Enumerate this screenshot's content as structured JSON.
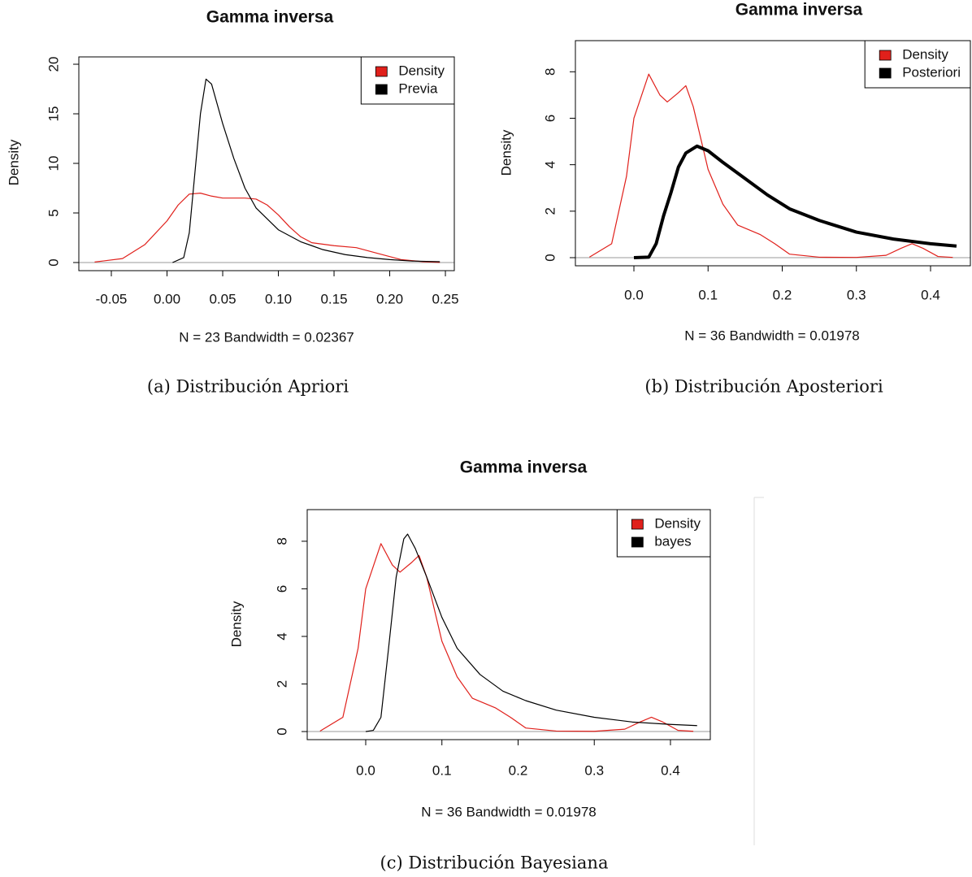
{
  "chart_data": [
    {
      "type": "line",
      "title": "Gamma inversa",
      "xlabel": "N = 23   Bandwidth = 0.02367",
      "ylabel": "Density",
      "caption": "(a) Distribución Apriori",
      "xlim": [
        -0.0792,
        0.258
      ],
      "ylim": [
        -0.82,
        20.74
      ],
      "xticks": [
        -0.05,
        {
          "value": 0,
          "label": "0.00"
        },
        0.05,
        {
          "value": 0.1,
          "label": "0.10"
        },
        0.15,
        {
          "value": 0.2,
          "label": "0.20"
        },
        0.25
      ],
      "yticks": [
        0,
        5,
        10,
        15,
        20
      ],
      "legend": "top-right",
      "series": [
        {
          "name": "Density",
          "color": "#e0201b",
          "linewidth": 1.2,
          "x": [
            -0.065,
            -0.04,
            -0.02,
            0.0,
            0.01,
            0.02,
            0.03,
            0.04,
            0.05,
            0.06,
            0.07,
            0.08,
            0.09,
            0.1,
            0.11,
            0.12,
            0.13,
            0.15,
            0.17,
            0.19,
            0.21,
            0.23,
            0.245
          ],
          "values": [
            0.05,
            0.4,
            1.8,
            4.2,
            5.8,
            6.9,
            7.0,
            6.7,
            6.5,
            6.5,
            6.5,
            6.4,
            5.8,
            4.8,
            3.6,
            2.6,
            2.0,
            1.7,
            1.5,
            0.9,
            0.3,
            0.08,
            0.02
          ]
        },
        {
          "name": "Previa",
          "color": "#000000",
          "linewidth": 1.2,
          "x": [
            0.005,
            0.015,
            0.02,
            0.025,
            0.03,
            0.035,
            0.04,
            0.05,
            0.06,
            0.07,
            0.08,
            0.1,
            0.12,
            0.14,
            0.16,
            0.18,
            0.2,
            0.22,
            0.245
          ],
          "values": [
            0,
            0.5,
            3,
            9,
            15,
            18.5,
            18,
            14,
            10.5,
            7.5,
            5.5,
            3.3,
            2.1,
            1.3,
            0.8,
            0.5,
            0.3,
            0.15,
            0.08
          ]
        }
      ]
    },
    {
      "type": "line",
      "title": "Gamma inversa",
      "xlabel": "N = 36   Bandwidth = 0.01978",
      "ylabel": "Density",
      "caption": "(b) Distribución Aposteriori",
      "xlim": [
        -0.0789,
        0.4537
      ],
      "ylim": [
        -0.35,
        9.34
      ],
      "xticks": [
        {
          "value": 0,
          "label": "0.0"
        },
        0.1,
        0.2,
        0.3,
        0.4
      ],
      "yticks": [
        0,
        2,
        4,
        6,
        8
      ],
      "legend": "top-right",
      "series": [
        {
          "name": "Density",
          "color": "#e0201b",
          "linewidth": 1.2,
          "x": [
            -0.06,
            -0.03,
            -0.01,
            0.0,
            0.02,
            0.035,
            0.045,
            0.06,
            0.07,
            0.08,
            0.1,
            0.12,
            0.14,
            0.17,
            0.19,
            0.21,
            0.25,
            0.3,
            0.34,
            0.36,
            0.375,
            0.39,
            0.41,
            0.43
          ],
          "values": [
            0.02,
            0.6,
            3.5,
            6,
            7.9,
            7.0,
            6.7,
            7.1,
            7.4,
            6.5,
            3.8,
            2.3,
            1.4,
            1.0,
            0.6,
            0.15,
            0.02,
            0.01,
            0.1,
            0.4,
            0.6,
            0.4,
            0.05,
            0.01
          ]
        },
        {
          "name": "Posteriori",
          "color": "#000000",
          "linewidth": 4,
          "x": [
            0.0,
            0.02,
            0.03,
            0.04,
            0.05,
            0.06,
            0.07,
            0.085,
            0.1,
            0.12,
            0.15,
            0.18,
            0.21,
            0.25,
            0.3,
            0.35,
            0.4,
            0.435
          ],
          "values": [
            0,
            0.02,
            0.6,
            1.8,
            2.8,
            3.9,
            4.5,
            4.8,
            4.6,
            4.1,
            3.4,
            2.7,
            2.1,
            1.6,
            1.1,
            0.8,
            0.6,
            0.5
          ]
        }
      ]
    },
    {
      "type": "line",
      "title": "Gamma inversa",
      "xlabel": "N = 36   Bandwidth = 0.01978",
      "ylabel": "Density",
      "caption": "(c) Distribución Bayesiana",
      "xlim": [
        -0.0768,
        0.4523
      ],
      "ylim": [
        -0.34,
        9.33
      ],
      "xticks": [
        {
          "value": 0,
          "label": "0.0"
        },
        0.1,
        0.2,
        0.3,
        0.4
      ],
      "yticks": [
        0,
        2,
        4,
        6,
        8
      ],
      "legend": "top-right",
      "series": [
        {
          "name": "Density",
          "color": "#e0201b",
          "linewidth": 1.2,
          "x": [
            -0.06,
            -0.03,
            -0.01,
            0.0,
            0.02,
            0.035,
            0.045,
            0.06,
            0.07,
            0.08,
            0.1,
            0.12,
            0.14,
            0.17,
            0.19,
            0.21,
            0.25,
            0.3,
            0.34,
            0.36,
            0.375,
            0.39,
            0.41,
            0.43
          ],
          "values": [
            0.02,
            0.6,
            3.5,
            6,
            7.9,
            7.0,
            6.7,
            7.1,
            7.4,
            6.5,
            3.8,
            2.3,
            1.4,
            1.0,
            0.6,
            0.15,
            0.02,
            0.01,
            0.1,
            0.4,
            0.6,
            0.4,
            0.05,
            0.01
          ]
        },
        {
          "name": "bayes",
          "color": "#000000",
          "linewidth": 1.2,
          "x": [
            0.0,
            0.01,
            0.02,
            0.03,
            0.04,
            0.05,
            0.055,
            0.065,
            0.08,
            0.1,
            0.12,
            0.15,
            0.18,
            0.21,
            0.25,
            0.3,
            0.35,
            0.4,
            0.435
          ],
          "values": [
            0,
            0.05,
            0.6,
            3.5,
            6.5,
            8.1,
            8.3,
            7.7,
            6.5,
            4.8,
            3.5,
            2.4,
            1.7,
            1.3,
            0.9,
            0.6,
            0.4,
            0.3,
            0.25
          ]
        }
      ]
    }
  ]
}
